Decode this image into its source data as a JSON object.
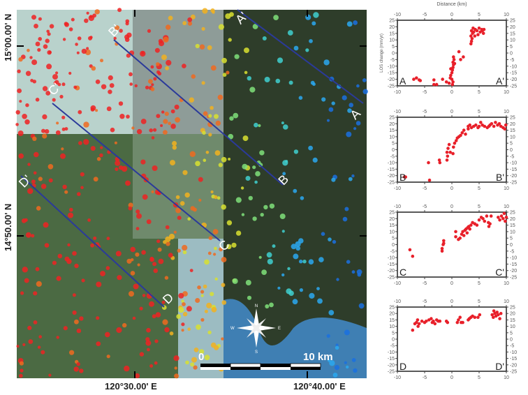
{
  "map": {
    "lat_labels": [
      "15°00.00' N",
      "14°50.00' N"
    ],
    "lon_labels": [
      "120°30.00' E",
      "120°40.00' E"
    ],
    "profiles": [
      {
        "start": "A",
        "end": "A'"
      },
      {
        "start": "B",
        "end": "B'"
      },
      {
        "start": "C",
        "end": "C'"
      },
      {
        "start": "D",
        "end": "D'"
      }
    ],
    "profile_line_color": "#2b3a9a",
    "compass": {
      "n": "N",
      "s": "S",
      "e": "E",
      "w": "W"
    },
    "scale_bar": {
      "start": "0",
      "end": "10 km"
    },
    "point_colors": [
      "#ee2222",
      "#f06a1e",
      "#f2b21e",
      "#d8e030",
      "#7fe07a",
      "#3fd0d0",
      "#2aa8f0",
      "#1a70e0"
    ]
  },
  "chart_data": [
    {
      "type": "scatter",
      "profile": "A",
      "left_label": "A",
      "right_label": "A'",
      "xlabel": "Distance (km)",
      "ylabel": "LOS change (mm/yr)",
      "xlim": [
        -10,
        10
      ],
      "ylim": [
        -25,
        25
      ],
      "xticks": [
        -10,
        -5,
        0,
        5,
        10
      ],
      "yticks": [
        25,
        20,
        15,
        10,
        5,
        0,
        -5,
        -10,
        -15,
        -20,
        -25
      ],
      "color": "#e8202a",
      "points": [
        [
          -7,
          -20
        ],
        [
          -6.5,
          -19
        ],
        [
          -6,
          -20.5
        ],
        [
          -5.8,
          -21
        ],
        [
          -3.3,
          -20.5
        ],
        [
          -3.3,
          -24
        ],
        [
          -2.8,
          -24
        ],
        [
          -1.7,
          -20
        ],
        [
          -1,
          -22
        ],
        [
          -0.5,
          -23
        ],
        [
          -0.3,
          -19
        ],
        [
          -0.2,
          -17
        ],
        [
          0,
          -15
        ],
        [
          0.1,
          -13
        ],
        [
          0.2,
          -11
        ],
        [
          0.3,
          -9
        ],
        [
          0.2,
          -7
        ],
        [
          0.4,
          -5
        ],
        [
          0.3,
          -3
        ],
        [
          0.5,
          -8
        ],
        [
          0,
          -20
        ],
        [
          0.2,
          -22
        ],
        [
          0.1,
          -24
        ],
        [
          -0.2,
          -12
        ],
        [
          1.3,
          1
        ],
        [
          1.6,
          -5
        ],
        [
          2.1,
          -3
        ],
        [
          3.5,
          7
        ],
        [
          3.6,
          9
        ],
        [
          3.7,
          11
        ],
        [
          3.5,
          13
        ],
        [
          3.8,
          15
        ],
        [
          3.6,
          17
        ],
        [
          4,
          16
        ],
        [
          4.3,
          18
        ],
        [
          4.6,
          17
        ],
        [
          5,
          19
        ],
        [
          5.2,
          16
        ],
        [
          5.5,
          18
        ],
        [
          5.8,
          15
        ],
        [
          5.6,
          17
        ],
        [
          4.8,
          14
        ],
        [
          4.2,
          13
        ],
        [
          3.9,
          19
        ],
        [
          5.9,
          18
        ]
      ]
    },
    {
      "type": "scatter",
      "profile": "B",
      "left_label": "B",
      "right_label": "B'",
      "xlim": [
        -10,
        10
      ],
      "ylim": [
        -25,
        25
      ],
      "xticks": [
        -10,
        -5,
        0,
        5,
        10
      ],
      "yticks": [
        25,
        20,
        15,
        10,
        5,
        0,
        -5,
        -10,
        -15,
        -20,
        -25
      ],
      "color": "#e8202a",
      "points": [
        [
          -8.5,
          -21
        ],
        [
          -8.7,
          -21
        ],
        [
          -4.3,
          -10
        ],
        [
          -4.1,
          -23.5
        ],
        [
          -2.3,
          -8
        ],
        [
          -2.2,
          -10
        ],
        [
          -0.9,
          -8
        ],
        [
          -0.8,
          -5
        ],
        [
          -0.9,
          -2
        ],
        [
          -0.7,
          1
        ],
        [
          -0.5,
          4
        ],
        [
          -0.3,
          -2
        ],
        [
          0.2,
          -3
        ],
        [
          0.3,
          2
        ],
        [
          0.5,
          5
        ],
        [
          0.8,
          7
        ],
        [
          1,
          9
        ],
        [
          1.3,
          10
        ],
        [
          1.6,
          11
        ],
        [
          1.9,
          13
        ],
        [
          2.2,
          15
        ],
        [
          2.5,
          12
        ],
        [
          3,
          16
        ],
        [
          3,
          18
        ],
        [
          3.3,
          19
        ],
        [
          3.6,
          17
        ],
        [
          4,
          18
        ],
        [
          4.4,
          19
        ],
        [
          4.8,
          17
        ],
        [
          5.3,
          21
        ],
        [
          5.6,
          19
        ],
        [
          6,
          18
        ],
        [
          6.5,
          17
        ],
        [
          7,
          19
        ],
        [
          7.3,
          20
        ],
        [
          7.7,
          18
        ],
        [
          8,
          21
        ],
        [
          8.4,
          19
        ],
        [
          8.7,
          20
        ],
        [
          9,
          18
        ],
        [
          9.4,
          17
        ],
        [
          9.7,
          16
        ],
        [
          9.9,
          19
        ],
        [
          6.8,
          18
        ],
        [
          5,
          18
        ]
      ]
    },
    {
      "type": "scatter",
      "profile": "C",
      "left_label": "C",
      "right_label": "C'",
      "xlim": [
        -10,
        10
      ],
      "ylim": [
        -25,
        25
      ],
      "xticks": [
        -10,
        -5,
        0,
        5,
        10
      ],
      "yticks": [
        25,
        20,
        15,
        10,
        5,
        0,
        -5,
        -10,
        -15,
        -20,
        -25
      ],
      "color": "#e8202a",
      "points": [
        [
          -7.7,
          -4
        ],
        [
          -7.2,
          -9
        ],
        [
          -1.8,
          -5
        ],
        [
          -1.8,
          -3
        ],
        [
          -1.6,
          0
        ],
        [
          -1.5,
          3
        ],
        [
          -1.5,
          1
        ],
        [
          0.7,
          10
        ],
        [
          0.7,
          6
        ],
        [
          1.2,
          4
        ],
        [
          1.5,
          5
        ],
        [
          1.8,
          8
        ],
        [
          2,
          10
        ],
        [
          2.2,
          7
        ],
        [
          2.4,
          11
        ],
        [
          2.6,
          12
        ],
        [
          2.9,
          13
        ],
        [
          3.1,
          14
        ],
        [
          3.3,
          12
        ],
        [
          3.5,
          15
        ],
        [
          3.8,
          17
        ],
        [
          4.2,
          16
        ],
        [
          4.6,
          15
        ],
        [
          5,
          19
        ],
        [
          5.4,
          21
        ],
        [
          5.7,
          20
        ],
        [
          6,
          18
        ],
        [
          6.4,
          22
        ],
        [
          6.7,
          17
        ],
        [
          6.8,
          14
        ],
        [
          7,
          16
        ],
        [
          7.2,
          22
        ],
        [
          8.5,
          21
        ],
        [
          8.8,
          19
        ],
        [
          9.1,
          22
        ],
        [
          9.4,
          20
        ],
        [
          9.6,
          24
        ],
        [
          9.8,
          18
        ],
        [
          10,
          21
        ],
        [
          2.8,
          9
        ]
      ]
    },
    {
      "type": "scatter",
      "profile": "D",
      "left_label": "D",
      "right_label": "D'",
      "xlim": [
        -10,
        10
      ],
      "ylim": [
        -25,
        25
      ],
      "xticks": [
        -10,
        -5,
        0,
        5,
        10
      ],
      "yticks": [
        25,
        20,
        15,
        10,
        5,
        0,
        -5,
        -10,
        -15,
        -20,
        -25
      ],
      "color": "#e8202a",
      "points": [
        [
          -7.2,
          7
        ],
        [
          -6.8,
          12
        ],
        [
          -6.5,
          13
        ],
        [
          -6.3,
          15
        ],
        [
          -6.2,
          10
        ],
        [
          -6,
          12
        ],
        [
          -5.5,
          14
        ],
        [
          -5,
          13
        ],
        [
          -4.7,
          14
        ],
        [
          -4.2,
          15
        ],
        [
          -3.8,
          16
        ],
        [
          -3.6,
          13
        ],
        [
          -3.4,
          14
        ],
        [
          -3.1,
          12
        ],
        [
          -2.8,
          15
        ],
        [
          -2.5,
          14
        ],
        [
          -2.2,
          14
        ],
        [
          -1,
          14
        ],
        [
          -0.8,
          13
        ],
        [
          1,
          13
        ],
        [
          1.2,
          15
        ],
        [
          1.5,
          17
        ],
        [
          1.7,
          13
        ],
        [
          2,
          13
        ],
        [
          3,
          15
        ],
        [
          3.2,
          16
        ],
        [
          3.5,
          17
        ],
        [
          3.8,
          18
        ],
        [
          4.2,
          17
        ],
        [
          4.8,
          17
        ],
        [
          5.1,
          19
        ],
        [
          7.4,
          19
        ],
        [
          7.7,
          22
        ],
        [
          7.9,
          20
        ],
        [
          8.1,
          18
        ],
        [
          8.3,
          21
        ],
        [
          8.5,
          19
        ],
        [
          8.8,
          16
        ],
        [
          9,
          20
        ],
        [
          7.6,
          17
        ]
      ]
    }
  ]
}
